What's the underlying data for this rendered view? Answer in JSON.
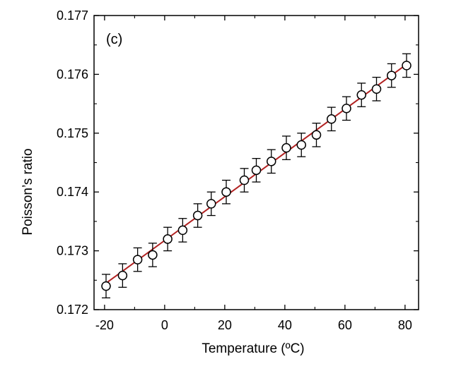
{
  "chart_data": {
    "type": "scatter",
    "panel_label": "(c)",
    "xlabel": "Temperature (ºC)",
    "ylabel": "Poisson’s ratio",
    "xlim": [
      -23.5,
      84.5
    ],
    "ylim": [
      0.172,
      0.177
    ],
    "xticks": [
      -20,
      0,
      20,
      40,
      60,
      80
    ],
    "yticks": [
      0.172,
      0.173,
      0.174,
      0.175,
      0.176,
      0.177
    ],
    "ytick_labels": [
      "0.172",
      "0.173",
      "0.174",
      "0.175",
      "0.176",
      "0.177"
    ],
    "grid": false,
    "fit_line": {
      "x": [
        -19.5,
        80.5
      ],
      "y": [
        0.17245,
        0.17617
      ],
      "color": "#b22222"
    },
    "series": [
      {
        "marker": "open-circle",
        "x": [
          -19.5,
          -14,
          -9,
          -4,
          1,
          6,
          11,
          15.5,
          20.5,
          26.5,
          30.5,
          35.5,
          40.5,
          45.5,
          50.5,
          55.5,
          60.5,
          65.5,
          70.5,
          75.5,
          80.5
        ],
        "y": [
          0.1724,
          0.17258,
          0.17285,
          0.17293,
          0.1732,
          0.17335,
          0.1736,
          0.1738,
          0.174,
          0.1742,
          0.17437,
          0.17452,
          0.17475,
          0.1748,
          0.17497,
          0.17524,
          0.17542,
          0.17565,
          0.17575,
          0.17598,
          0.17615
        ],
        "yerr": 0.0002
      }
    ]
  }
}
